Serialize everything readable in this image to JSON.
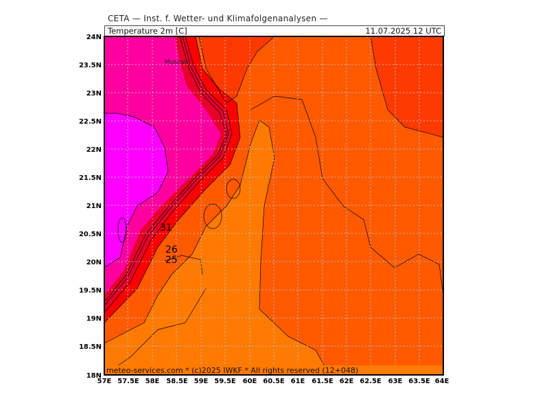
{
  "header": {
    "source": "CETA — Inst. f. Wetter- und Klimafolgenanalysen —",
    "field": "Temperature 2m [C]",
    "datetime": "11.07.2025 12 UTC"
  },
  "map": {
    "lon_labels": [
      "57E",
      "57.5E",
      "58E",
      "58.5E",
      "59E",
      "59.5E",
      "60E",
      "60.5E",
      "61E",
      "61.5E",
      "62E",
      "62.5E",
      "63E",
      "63.5E",
      "64E"
    ],
    "lat_labels": [
      "24N",
      "23.5N",
      "23N",
      "22.5N",
      "22N",
      "21.5N",
      "21N",
      "20.5N",
      "20N",
      "19.5N",
      "19N",
      "18.5N",
      "18N"
    ],
    "city": "Muscat",
    "contour_labels": [
      "31",
      "26",
      "25"
    ],
    "colors": {
      "sea_orange": "#ff7a00",
      "warm_orange": "#ff5a00",
      "hot_orange": "#ff3a00",
      "red": "#ff0000",
      "deep_red": "#e8002a",
      "pink": "#ff00a0",
      "magenta": "#ff00ff"
    }
  },
  "footer": {
    "copyright": "meteo-services.com * (c)2025 IWKF * All rights reserved (12+048)"
  }
}
